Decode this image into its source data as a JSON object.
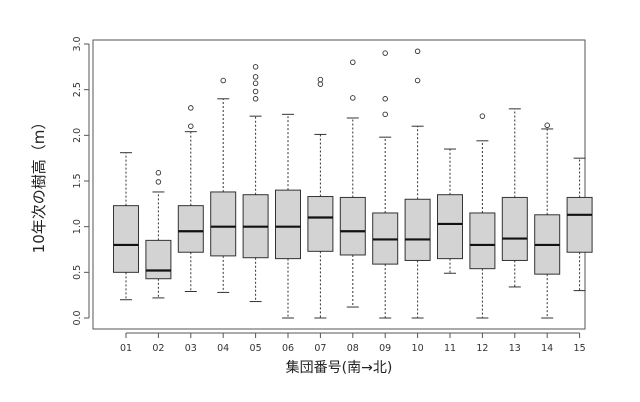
{
  "chart_data": {
    "type": "box",
    "xlabel": "集団番号(南→北)",
    "ylabel": "10年次の樹高（m）",
    "ylim": [
      0.0,
      3.0
    ],
    "yticks": [
      "0.0",
      "0.5",
      "1.0",
      "1.5",
      "2.0",
      "2.5",
      "3.0"
    ],
    "categories": [
      "01",
      "02",
      "03",
      "04",
      "05",
      "06",
      "07",
      "08",
      "09",
      "10",
      "11",
      "12",
      "13",
      "14",
      "15"
    ],
    "boxes": [
      {
        "min": 0.2,
        "q1": 0.5,
        "median": 0.8,
        "q3": 1.23,
        "max": 1.81,
        "outliers": []
      },
      {
        "min": 0.22,
        "q1": 0.43,
        "median": 0.52,
        "q3": 0.85,
        "max": 1.38,
        "outliers": [
          1.49,
          1.59
        ]
      },
      {
        "min": 0.29,
        "q1": 0.72,
        "median": 0.95,
        "q3": 1.23,
        "max": 2.04,
        "outliers": [
          2.1,
          2.3
        ]
      },
      {
        "min": 0.28,
        "q1": 0.68,
        "median": 1.0,
        "q3": 1.38,
        "max": 2.4,
        "outliers": [
          2.6
        ]
      },
      {
        "min": 0.18,
        "q1": 0.66,
        "median": 1.0,
        "q3": 1.35,
        "max": 2.21,
        "outliers": [
          2.4,
          2.48,
          2.57,
          2.64,
          2.75
        ]
      },
      {
        "min": 0.0,
        "q1": 0.65,
        "median": 1.0,
        "q3": 1.4,
        "max": 2.23,
        "outliers": []
      },
      {
        "min": 0.0,
        "q1": 0.73,
        "median": 1.1,
        "q3": 1.33,
        "max": 2.01,
        "outliers": [
          2.56,
          2.61
        ]
      },
      {
        "min": 0.12,
        "q1": 0.69,
        "median": 0.95,
        "q3": 1.32,
        "max": 2.19,
        "outliers": [
          2.41,
          2.8
        ]
      },
      {
        "min": 0.0,
        "q1": 0.59,
        "median": 0.86,
        "q3": 1.15,
        "max": 1.98,
        "outliers": [
          2.23,
          2.4,
          2.9
        ]
      },
      {
        "min": 0.0,
        "q1": 0.63,
        "median": 0.86,
        "q3": 1.3,
        "max": 2.1,
        "outliers": [
          2.6,
          2.92
        ]
      },
      {
        "min": 0.49,
        "q1": 0.65,
        "median": 1.03,
        "q3": 1.35,
        "max": 1.85,
        "outliers": []
      },
      {
        "min": 0.0,
        "q1": 0.54,
        "median": 0.8,
        "q3": 1.15,
        "max": 1.94,
        "outliers": [
          2.21
        ]
      },
      {
        "min": 0.34,
        "q1": 0.63,
        "median": 0.87,
        "q3": 1.32,
        "max": 2.29,
        "outliers": []
      },
      {
        "min": 0.0,
        "q1": 0.48,
        "median": 0.8,
        "q3": 1.13,
        "max": 2.07,
        "outliers": [
          2.11
        ]
      },
      {
        "min": 0.3,
        "q1": 0.72,
        "median": 1.13,
        "q3": 1.32,
        "max": 1.75,
        "outliers": []
      }
    ],
    "box_fill": "#d3d3d3",
    "line_color": "#333333"
  }
}
